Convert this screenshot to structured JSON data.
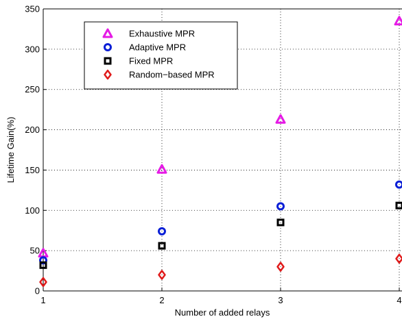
{
  "chart_data": {
    "type": "scatter",
    "title": "",
    "xlabel": "Number of added relays",
    "ylabel": "Lifetime Gain(%)",
    "xlim": [
      1,
      4
    ],
    "ylim": [
      0,
      350
    ],
    "x_ticks": [
      1,
      2,
      3,
      4
    ],
    "y_ticks": [
      0,
      50,
      100,
      150,
      200,
      250,
      300,
      350
    ],
    "grid": true,
    "legend_position": "top-left",
    "series": [
      {
        "name": "Exhaustive MPR",
        "marker": "triangle",
        "color": "#e51be5",
        "x": [
          1,
          2,
          3,
          4
        ],
        "values": [
          47,
          151,
          213,
          335
        ]
      },
      {
        "name": "Adaptive MPR",
        "marker": "circle",
        "color": "#0a1fd6",
        "x": [
          1,
          2,
          3,
          4
        ],
        "values": [
          38,
          74,
          105,
          132
        ]
      },
      {
        "name": "Fixed MPR",
        "marker": "square",
        "color": "#000000",
        "x": [
          1,
          2,
          3,
          4
        ],
        "values": [
          32,
          56,
          85,
          106
        ]
      },
      {
        "name": "Random−based MPR",
        "marker": "diamond",
        "color": "#e01b1b",
        "x": [
          1,
          2,
          3,
          4
        ],
        "values": [
          11,
          20,
          30,
          40
        ]
      }
    ]
  }
}
